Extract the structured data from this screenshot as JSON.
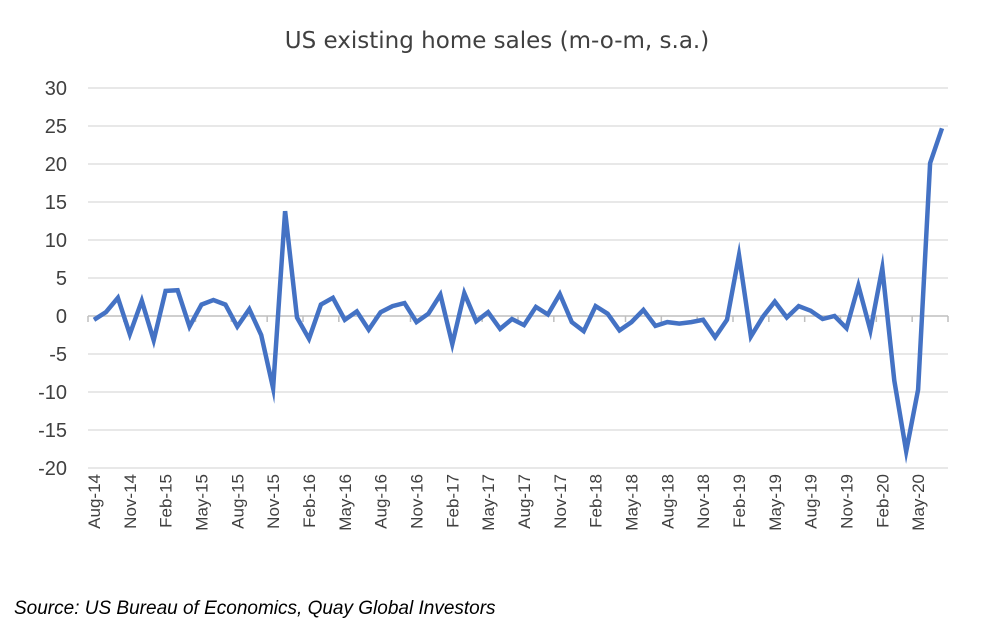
{
  "chart_data": {
    "type": "line",
    "title": "US existing home sales (m-o-m, s.a.)",
    "xlabel": "",
    "ylabel": "",
    "ylim": [
      -20,
      30
    ],
    "yticks": [
      30,
      25,
      20,
      15,
      10,
      5,
      0,
      -5,
      -10,
      -15,
      -20
    ],
    "grid": true,
    "x_tick_labels": [
      "Aug-14",
      "Nov-14",
      "Feb-15",
      "May-15",
      "Aug-15",
      "Nov-15",
      "Feb-16",
      "May-16",
      "Aug-16",
      "Nov-16",
      "Feb-17",
      "May-17",
      "Aug-17",
      "Nov-17",
      "Feb-18",
      "May-18",
      "Aug-18",
      "Nov-18",
      "Feb-19",
      "May-19",
      "Aug-19",
      "Nov-19",
      "Feb-20",
      "May-20"
    ],
    "x_tick_every": 3,
    "series": [
      {
        "name": "US existing home sales m-o-m",
        "color": "#4472C4",
        "values": [
          -0.5,
          0.5,
          2.4,
          -2.4,
          2.0,
          -3.2,
          3.3,
          3.4,
          -1.4,
          1.5,
          2.1,
          1.5,
          -1.4,
          0.9,
          -2.5,
          -9.5,
          13.8,
          -0.2,
          -3.0,
          1.5,
          2.4,
          -0.5,
          0.6,
          -1.8,
          0.5,
          1.3,
          1.7,
          -0.8,
          0.3,
          2.8,
          -3.7,
          3.0,
          -0.7,
          0.5,
          -1.7,
          -0.4,
          -1.2,
          1.2,
          0.2,
          2.9,
          -0.8,
          -2.0,
          1.3,
          0.3,
          -1.9,
          -0.8,
          0.8,
          -1.3,
          -0.8,
          -1.0,
          -0.8,
          -0.5,
          -2.8,
          -0.5,
          8.0,
          -2.7,
          -0.1,
          1.9,
          -0.2,
          1.3,
          0.7,
          -0.4,
          0.0,
          -1.6,
          4.0,
          -1.9,
          6.3,
          -8.5,
          -17.8,
          -9.7,
          20.1,
          24.7
        ]
      }
    ]
  },
  "source_text": "Source: US Bureau of Economics, Quay Global Investors"
}
